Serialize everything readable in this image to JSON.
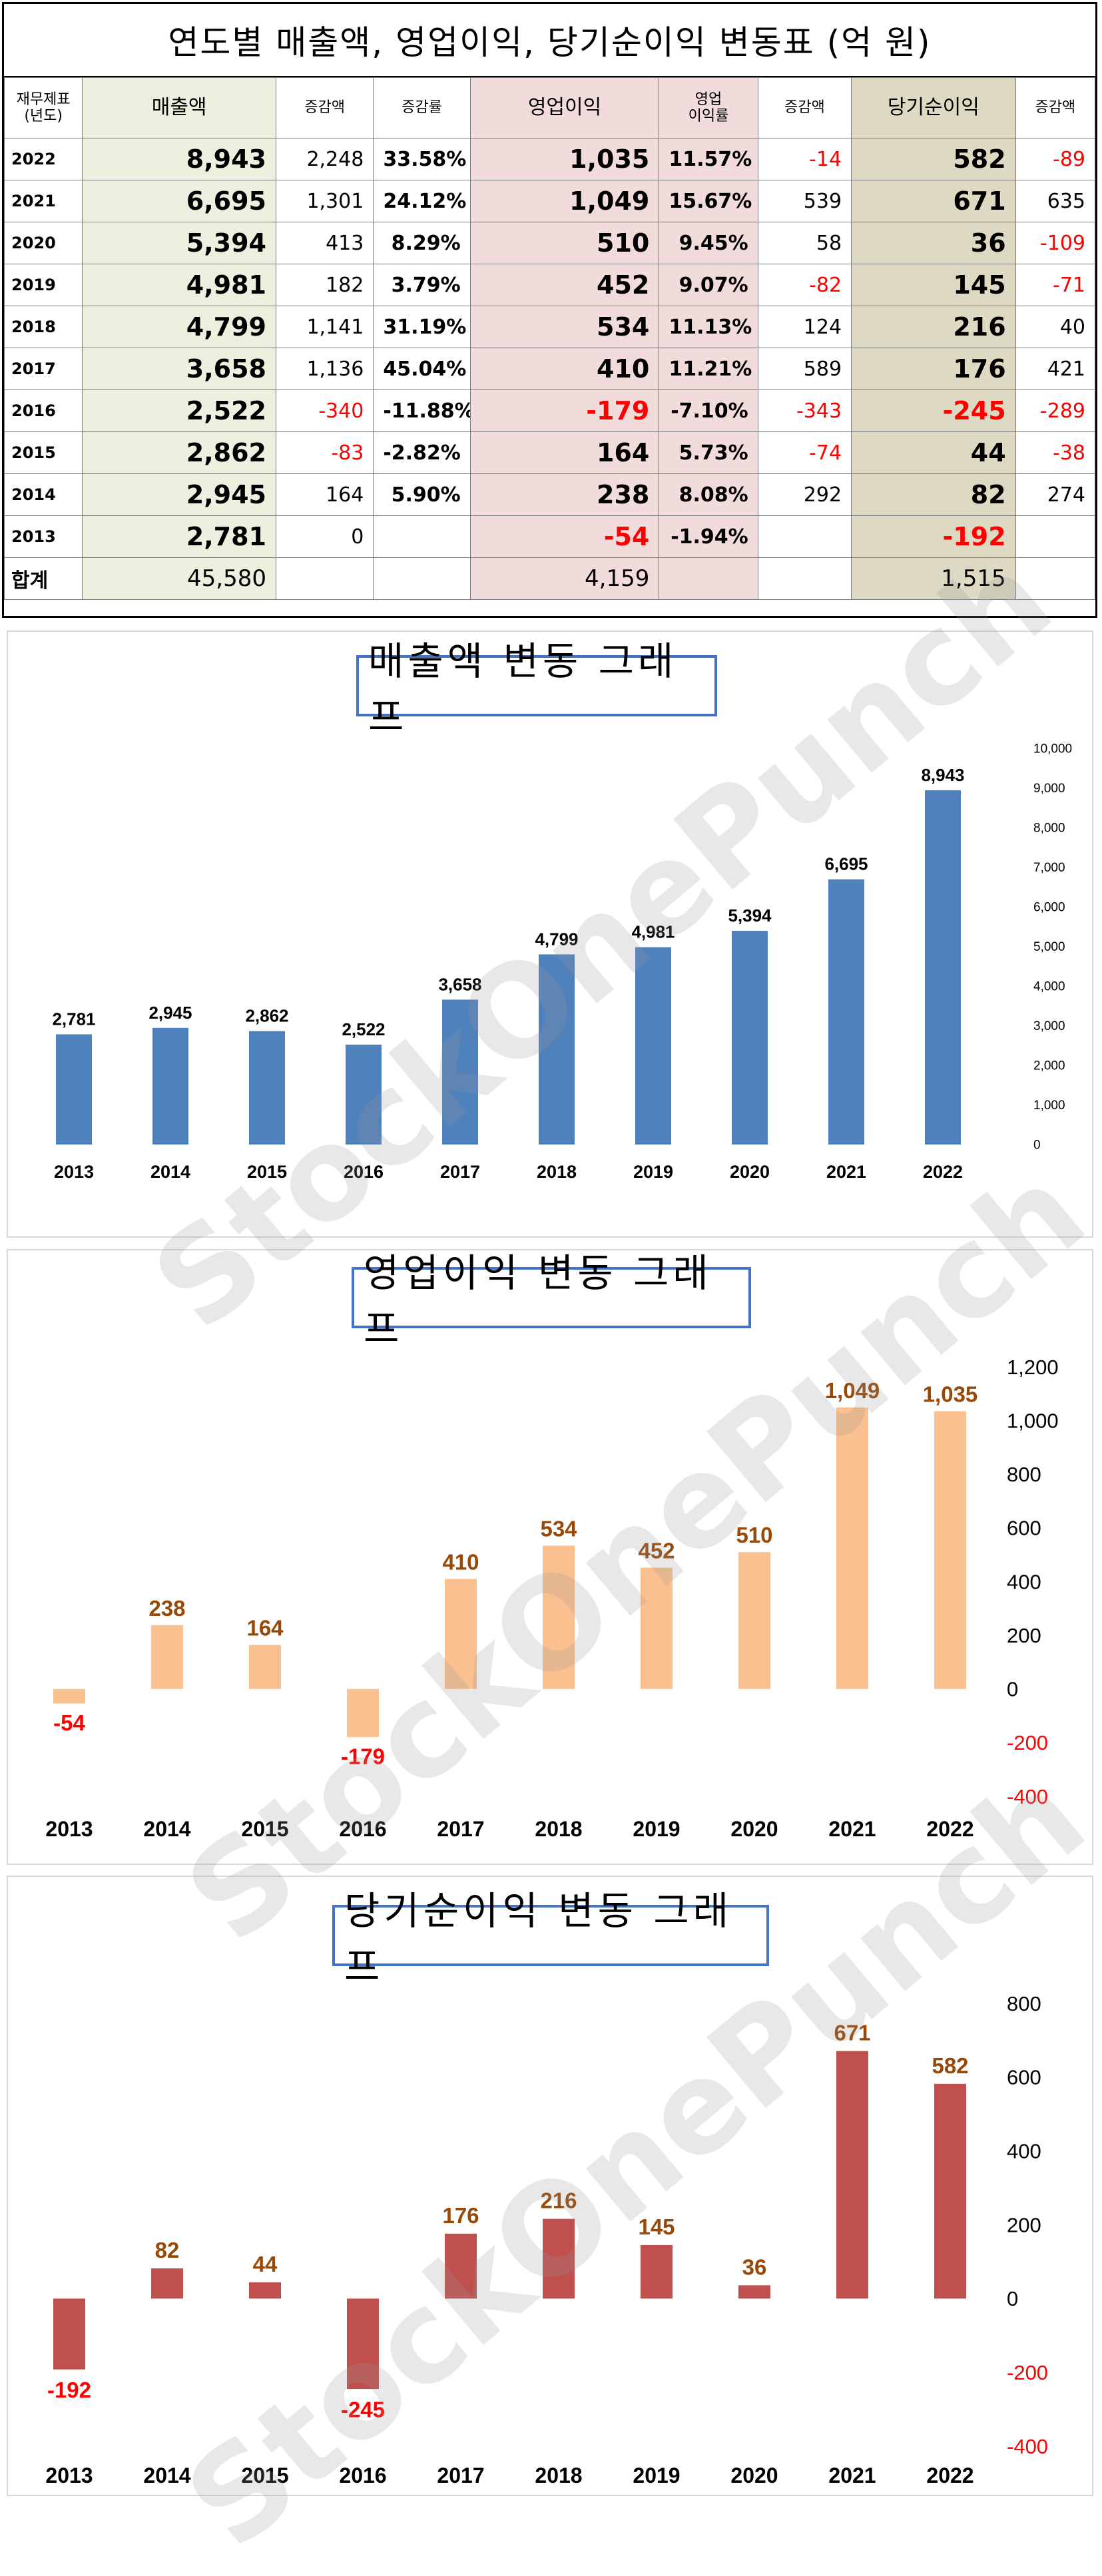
{
  "table": {
    "title": "연도별 매출액, 영업이익, 당기순이익 변동표  (억 원)",
    "headers": [
      "재무제표\n(년도)",
      "매출액",
      "증감액",
      "증감률",
      "영업이익",
      "영업\n이익률",
      "증감액",
      "당기순이익",
      "증감액"
    ],
    "rows": [
      [
        "2022",
        "8,943",
        "2,248",
        "33.58%",
        "1,035",
        "11.57%",
        "-14",
        "582",
        "-89"
      ],
      [
        "2021",
        "6,695",
        "1,301",
        "24.12%",
        "1,049",
        "15.67%",
        "539",
        "671",
        "635"
      ],
      [
        "2020",
        "5,394",
        "413",
        "8.29%",
        "510",
        "9.45%",
        "58",
        "36",
        "-109"
      ],
      [
        "2019",
        "4,981",
        "182",
        "3.79%",
        "452",
        "9.07%",
        "-82",
        "145",
        "-71"
      ],
      [
        "2018",
        "4,799",
        "1,141",
        "31.19%",
        "534",
        "11.13%",
        "124",
        "216",
        "40"
      ],
      [
        "2017",
        "3,658",
        "1,136",
        "45.04%",
        "410",
        "11.21%",
        "589",
        "176",
        "421"
      ],
      [
        "2016",
        "2,522",
        "-340",
        "-11.88%",
        "-179",
        "-7.10%",
        "-343",
        "-245",
        "-289"
      ],
      [
        "2015",
        "2,862",
        "-83",
        "-2.82%",
        "164",
        "5.73%",
        "-74",
        "44",
        "-38"
      ],
      [
        "2014",
        "2,945",
        "164",
        "5.90%",
        "238",
        "8.08%",
        "292",
        "82",
        "274"
      ],
      [
        "2013",
        "2,781",
        "0",
        "",
        "-54",
        "-1.94%",
        "",
        "-192",
        ""
      ]
    ],
    "total": [
      "합계",
      "45,580",
      "",
      "",
      "4,159",
      "",
      "",
      "1,515",
      ""
    ]
  },
  "watermark": "StockOnePunch",
  "colors": {
    "revenue": "#4f81bd",
    "operating": "#fac090",
    "net": "#c0504d",
    "operating_label": "#984807",
    "net_label": "#984807",
    "negative_label": "#ff0000",
    "title_border": "#4472c4"
  },
  "chart_data": [
    {
      "type": "bar",
      "title": "매출액 변동 그래프",
      "categories": [
        "2013",
        "2014",
        "2015",
        "2016",
        "2017",
        "2018",
        "2019",
        "2020",
        "2021",
        "2022"
      ],
      "values": [
        2781,
        2945,
        2862,
        2522,
        3658,
        4799,
        4981,
        5394,
        6695,
        8943
      ],
      "value_labels": [
        "2,781",
        "2,945",
        "2,862",
        "2,522",
        "3,658",
        "4,799",
        "4,981",
        "5,394",
        "6,695",
        "8,943"
      ],
      "ylim": [
        0,
        10000
      ],
      "ticks": [
        0,
        1000,
        2000,
        3000,
        4000,
        5000,
        6000,
        7000,
        8000,
        9000,
        10000
      ],
      "tick_labels": [
        "0",
        "1,000",
        "2,000",
        "3,000",
        "4,000",
        "5,000",
        "6,000",
        "7,000",
        "8,000",
        "9,000",
        "10,000"
      ],
      "grid": false,
      "yaxis_side": "right"
    },
    {
      "type": "bar",
      "title": "영업이익 변동 그래프",
      "categories": [
        "2013",
        "2014",
        "2015",
        "2016",
        "2017",
        "2018",
        "2019",
        "2020",
        "2021",
        "2022"
      ],
      "values": [
        -54,
        238,
        164,
        -179,
        410,
        534,
        452,
        510,
        1049,
        1035
      ],
      "value_labels": [
        "-54",
        "238",
        "164",
        "-179",
        "410",
        "534",
        "452",
        "510",
        "1,049",
        "1,035"
      ],
      "ylim": [
        -400,
        1200
      ],
      "ticks": [
        -400,
        -200,
        0,
        200,
        400,
        600,
        800,
        1000,
        1200
      ],
      "tick_labels": [
        "-400",
        "-200",
        "0",
        "200",
        "400",
        "600",
        "800",
        "1,000",
        "1,200"
      ],
      "grid": false,
      "yaxis_side": "right"
    },
    {
      "type": "bar",
      "title": "당기순이익 변동 그래프",
      "categories": [
        "2013",
        "2014",
        "2015",
        "2016",
        "2017",
        "2018",
        "2019",
        "2020",
        "2021",
        "2022"
      ],
      "values": [
        -192,
        82,
        44,
        -245,
        176,
        216,
        145,
        36,
        671,
        582
      ],
      "value_labels": [
        "-192",
        "82",
        "44",
        "-245",
        "176",
        "216",
        "145",
        "36",
        "671",
        "582"
      ],
      "ylim": [
        -400,
        800
      ],
      "ticks": [
        -400,
        -200,
        0,
        200,
        400,
        600,
        800
      ],
      "tick_labels": [
        "-400",
        "-200",
        "0",
        "200",
        "400",
        "600",
        "800"
      ],
      "grid": false,
      "yaxis_side": "right"
    }
  ]
}
